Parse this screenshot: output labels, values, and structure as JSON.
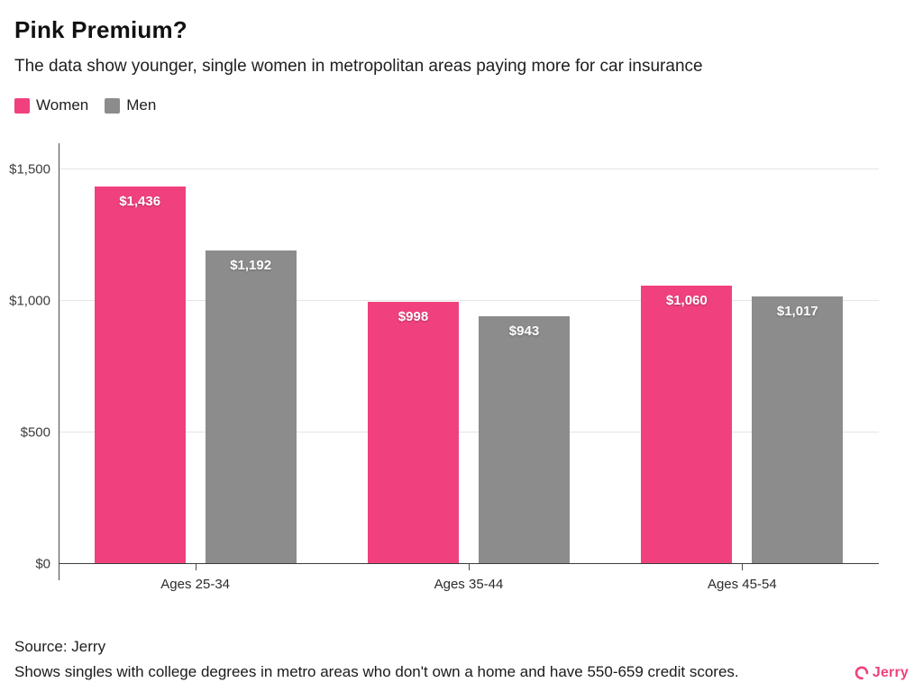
{
  "header": {
    "title": "Pink Premium?",
    "subtitle": "The data show younger, single women in metropolitan areas paying more for car insurance"
  },
  "colors": {
    "women": "#F0417E",
    "men": "#8C8C8C",
    "brand": "#F0417E"
  },
  "legend": [
    {
      "label": "Women",
      "color": "#F0417E"
    },
    {
      "label": "Men",
      "color": "#8C8C8C"
    }
  ],
  "chart_data": {
    "type": "bar",
    "title": "Pink Premium?",
    "xlabel": "",
    "ylabel": "",
    "categories": [
      "Ages 25-34",
      "Ages 35-44",
      "Ages 45-54"
    ],
    "series": [
      {
        "name": "Women",
        "color": "#F0417E",
        "values": [
          1436,
          998,
          1060
        ],
        "labels": [
          "$1,436",
          "$998",
          "$1,060"
        ]
      },
      {
        "name": "Men",
        "color": "#8C8C8C",
        "values": [
          1192,
          943,
          1017
        ],
        "labels": [
          "$1,192",
          "$943",
          "$1,017"
        ]
      }
    ],
    "ylim": [
      0,
      1600
    ],
    "yticks": [
      {
        "value": 0,
        "label": "$0"
      },
      {
        "value": 500,
        "label": "$500"
      },
      {
        "value": 1000,
        "label": "$1,000"
      },
      {
        "value": 1500,
        "label": "$1,500"
      }
    ],
    "grid": true,
    "legend_position": "top-left"
  },
  "footer": {
    "source": "Source: Jerry",
    "note": "Shows singles with college degrees in metro areas who don't own a home and have 550-659 credit scores.",
    "brand": "Jerry"
  }
}
